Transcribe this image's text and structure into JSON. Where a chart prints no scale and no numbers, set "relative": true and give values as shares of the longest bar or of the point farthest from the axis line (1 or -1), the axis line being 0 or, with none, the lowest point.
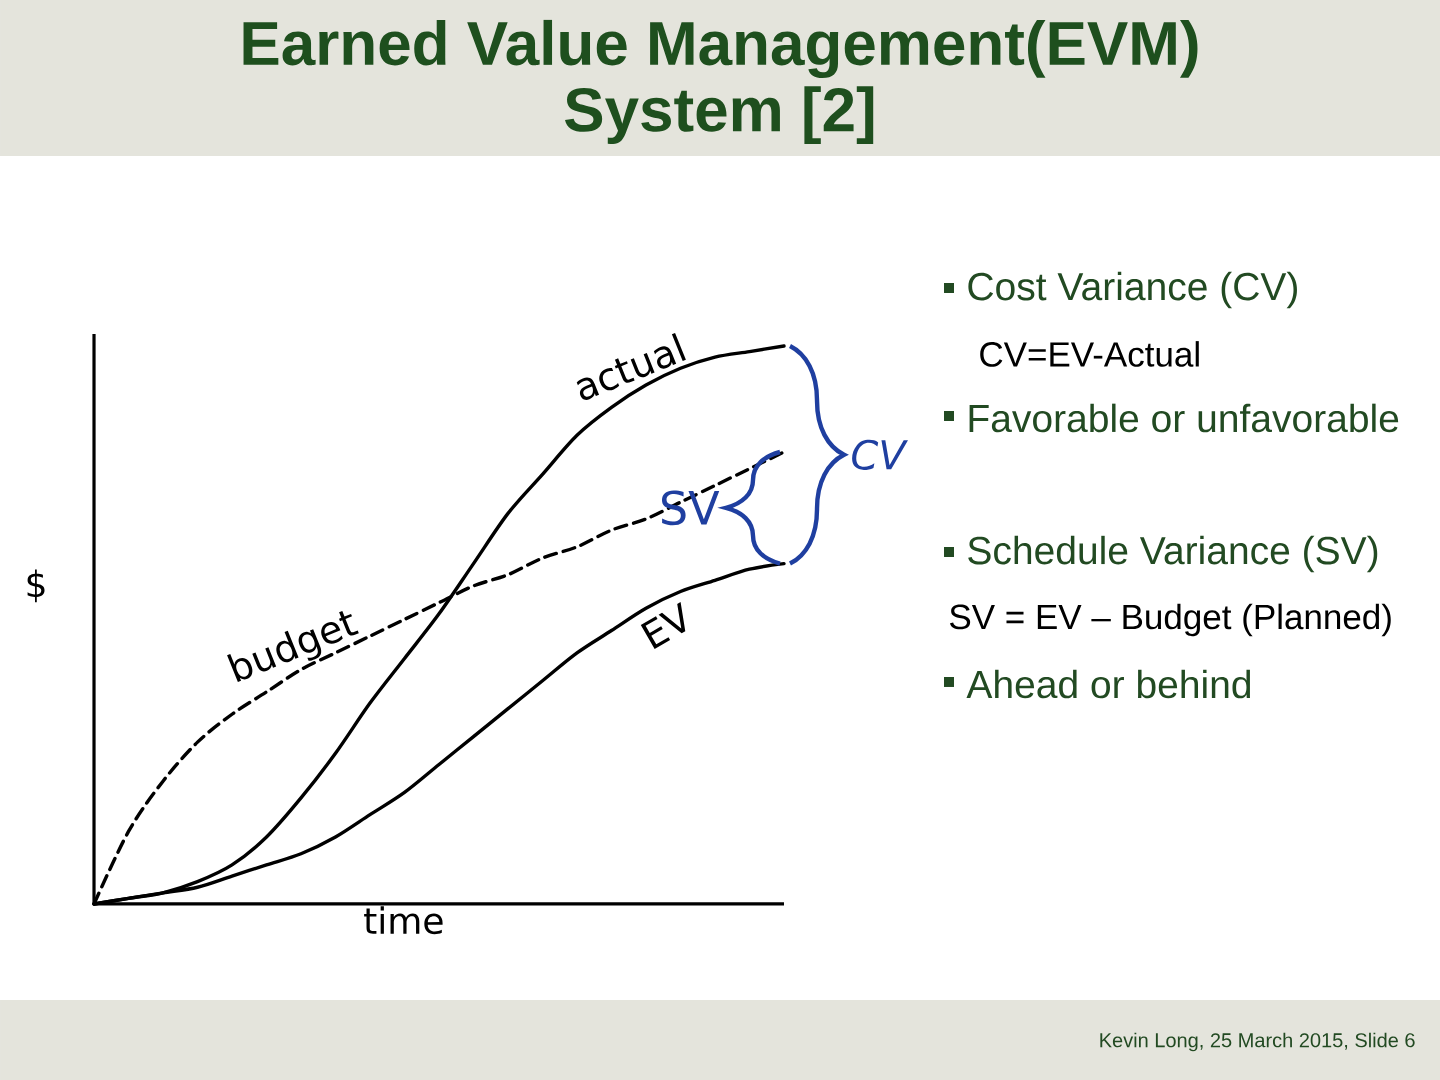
{
  "chart_data": {
    "type": "line",
    "title": "Earned Value Management(EVM) System [2]",
    "xlabel": "time",
    "ylabel": "$",
    "relative": true,
    "categories": [
      null,
      null,
      null,
      null,
      null,
      null,
      null,
      null,
      null,
      null,
      null,
      null,
      null,
      null,
      null,
      null,
      null,
      null,
      null,
      null,
      null
    ],
    "series": [
      {
        "name": "actual",
        "color": "#000000",
        "values": [
          0,
          0.01,
          0.02,
          0.04,
          0.07,
          0.12,
          0.19,
          0.27,
          0.36,
          0.44,
          0.52,
          0.61,
          0.7,
          0.77,
          0.84,
          0.89,
          0.93,
          0.96,
          0.98,
          0.99,
          1
        ]
      },
      {
        "name": "budget",
        "color": "#000000",
        "line_style": "dashed",
        "values": [
          0,
          0.13,
          0.22,
          0.29,
          0.34,
          0.38,
          0.42,
          0.45,
          0.48,
          0.51,
          0.54,
          0.57,
          0.59,
          0.62,
          0.64,
          0.67,
          0.69,
          0.72,
          0.75,
          0.78,
          0.81
        ]
      },
      {
        "name": "EV",
        "color": "#000000",
        "values": [
          0,
          0.01,
          0.02,
          0.03,
          0.05,
          0.07,
          0.09,
          0.12,
          0.16,
          0.2,
          0.25,
          0.3,
          0.35,
          0.4,
          0.45,
          0.49,
          0.53,
          0.56,
          0.58,
          0.6,
          0.61
        ]
      }
    ],
    "annotations": [
      "SV",
      "CV",
      "Cost Variance (CV)",
      "CV=EV-Actual",
      "Favorable or unfavorable",
      "Schedule Variance (SV)",
      "SV = EV – Budget (Planned)",
      "Ahead or behind",
      "Kevin Long, 25 March 2015, Slide 6"
    ]
  }
}
